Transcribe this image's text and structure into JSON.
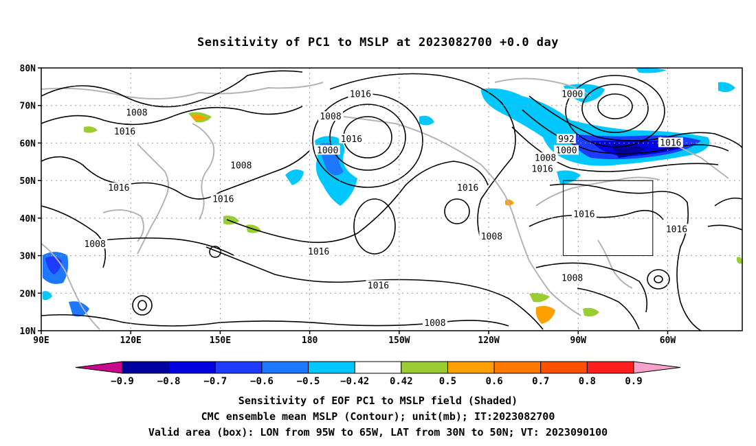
{
  "title": "Sensitivity of PC1 to MSLP at 2023082700 +0.0 day",
  "map": {
    "lon_min": 90,
    "lon_max": 325,
    "lat_min": 10,
    "lat_max": 80,
    "lat_ticks": [
      {
        "lat": 80,
        "label": "80N"
      },
      {
        "lat": 70,
        "label": "70N"
      },
      {
        "lat": 60,
        "label": "60N"
      },
      {
        "lat": 50,
        "label": "50N"
      },
      {
        "lat": 40,
        "label": "40N"
      },
      {
        "lat": 30,
        "label": "30N"
      },
      {
        "lat": 20,
        "label": "20N"
      },
      {
        "lat": 10,
        "label": "10N"
      }
    ],
    "lon_ticks": [
      {
        "lon": 90,
        "label": "90E"
      },
      {
        "lon": 120,
        "label": "120E"
      },
      {
        "lon": 150,
        "label": "150E"
      },
      {
        "lon": 180,
        "label": "180"
      },
      {
        "lon": 210,
        "label": "150W"
      },
      {
        "lon": 240,
        "label": "120W"
      },
      {
        "lon": 270,
        "label": "90W"
      },
      {
        "lon": 300,
        "label": "60W"
      }
    ],
    "valid_box": {
      "lon_west": 265,
      "lon_east": 295,
      "lat_south": 30,
      "lat_north": 50
    },
    "contour_labels": [
      {
        "text": "1016",
        "lon": 197,
        "lat": 73
      },
      {
        "text": "1008",
        "lon": 187,
        "lat": 67
      },
      {
        "text": "1000",
        "lon": 268,
        "lat": 73
      },
      {
        "text": "1008",
        "lon": 122,
        "lat": 68
      },
      {
        "text": "1016",
        "lon": 118,
        "lat": 63
      },
      {
        "text": "1000",
        "lon": 186,
        "lat": 58
      },
      {
        "text": "1016",
        "lon": 194,
        "lat": 61
      },
      {
        "text": "992",
        "lon": 266,
        "lat": 61
      },
      {
        "text": "1000",
        "lon": 266,
        "lat": 58
      },
      {
        "text": "1008",
        "lon": 259,
        "lat": 56
      },
      {
        "text": "1016",
        "lon": 258,
        "lat": 53
      },
      {
        "text": "1016",
        "lon": 301,
        "lat": 60
      },
      {
        "text": "1008",
        "lon": 157,
        "lat": 54
      },
      {
        "text": "1016",
        "lon": 116,
        "lat": 48
      },
      {
        "text": "1016",
        "lon": 151,
        "lat": 45
      },
      {
        "text": "1016",
        "lon": 233,
        "lat": 48
      },
      {
        "text": "1016",
        "lon": 272,
        "lat": 41
      },
      {
        "text": "1016",
        "lon": 303,
        "lat": 37
      },
      {
        "text": "1008",
        "lon": 108,
        "lat": 33
      },
      {
        "text": "1016",
        "lon": 183,
        "lat": 31
      },
      {
        "text": "1008",
        "lon": 241,
        "lat": 35
      },
      {
        "text": "1016",
        "lon": 203,
        "lat": 22
      },
      {
        "text": "1008",
        "lon": 268,
        "lat": 24
      },
      {
        "text": "1008",
        "lon": 222,
        "lat": 12
      }
    ]
  },
  "colorbar": {
    "colors": [
      "#c8078c",
      "#0000a0",
      "#0000e0",
      "#1e3cff",
      "#1e78ff",
      "#00c8ff",
      "#ffffff",
      "#9acd32",
      "#ffa000",
      "#ff7800",
      "#ff5000",
      "#ff1e1e",
      "#f5a3cc"
    ],
    "labels": [
      "−0.9",
      "−0.8",
      "−0.7",
      "−0.6",
      "−0.5",
      "−0.42",
      "0.42",
      "0.5",
      "0.6",
      "0.7",
      "0.8",
      "0.9"
    ]
  },
  "captions": {
    "line1": "Sensitivity of EOF PC1 to MSLP field (Shaded)",
    "line2": "CMC ensemble mean MSLP (Contour); unit(mb); IT:2023082700",
    "line3": "Valid area (box): LON from 95W to 65W, LAT from 30N to 50N; VT: 2023090100"
  }
}
